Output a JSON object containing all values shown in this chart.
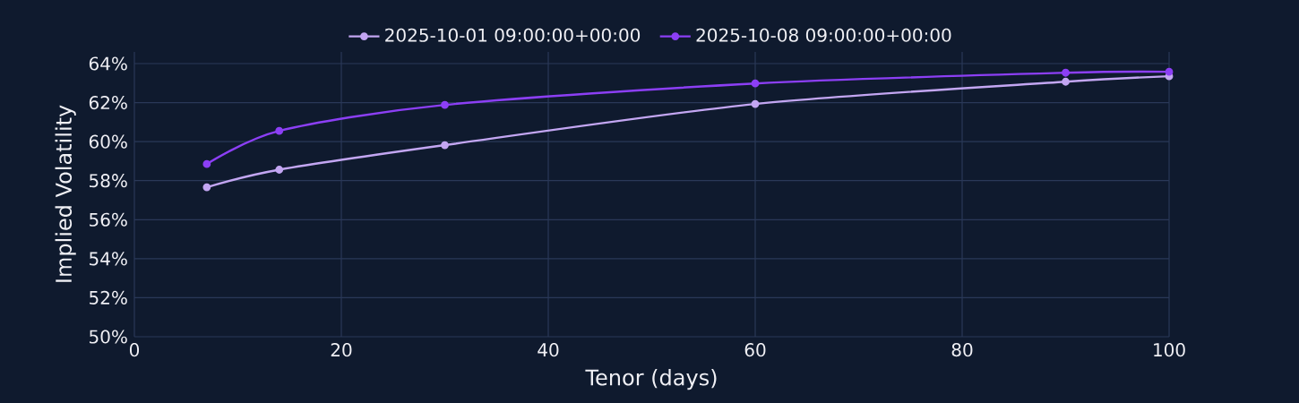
{
  "chart_data": {
    "type": "line",
    "xlabel": "Tenor (days)",
    "ylabel": "Implied Volatility",
    "xlim": [
      0,
      100
    ],
    "ylim": [
      50,
      64.6
    ],
    "xticks": [
      0,
      20,
      40,
      60,
      80,
      100
    ],
    "yticks": [
      {
        "value": 50,
        "label": "50%"
      },
      {
        "value": 52,
        "label": "52%"
      },
      {
        "value": 54,
        "label": "54%"
      },
      {
        "value": 56,
        "label": "56%"
      },
      {
        "value": 58,
        "label": "58%"
      },
      {
        "value": 60,
        "label": "60%"
      },
      {
        "value": 62,
        "label": "62%"
      },
      {
        "value": 64,
        "label": "64%"
      }
    ],
    "grid": true,
    "legend": "top",
    "marker": "circle",
    "series": [
      {
        "name": "2025-10-01 09:00:00+00:00",
        "color": "#c3a6f2",
        "x": [
          7,
          14,
          30,
          60,
          90,
          100
        ],
        "values": [
          57.66,
          58.56,
          59.82,
          61.93,
          63.07,
          63.35
        ]
      },
      {
        "name": "2025-10-08 09:00:00+00:00",
        "color": "#8c3ff5",
        "x": [
          7,
          14,
          30,
          60,
          90,
          100
        ],
        "values": [
          58.85,
          60.55,
          61.88,
          62.98,
          63.53,
          63.58
        ]
      }
    ]
  }
}
